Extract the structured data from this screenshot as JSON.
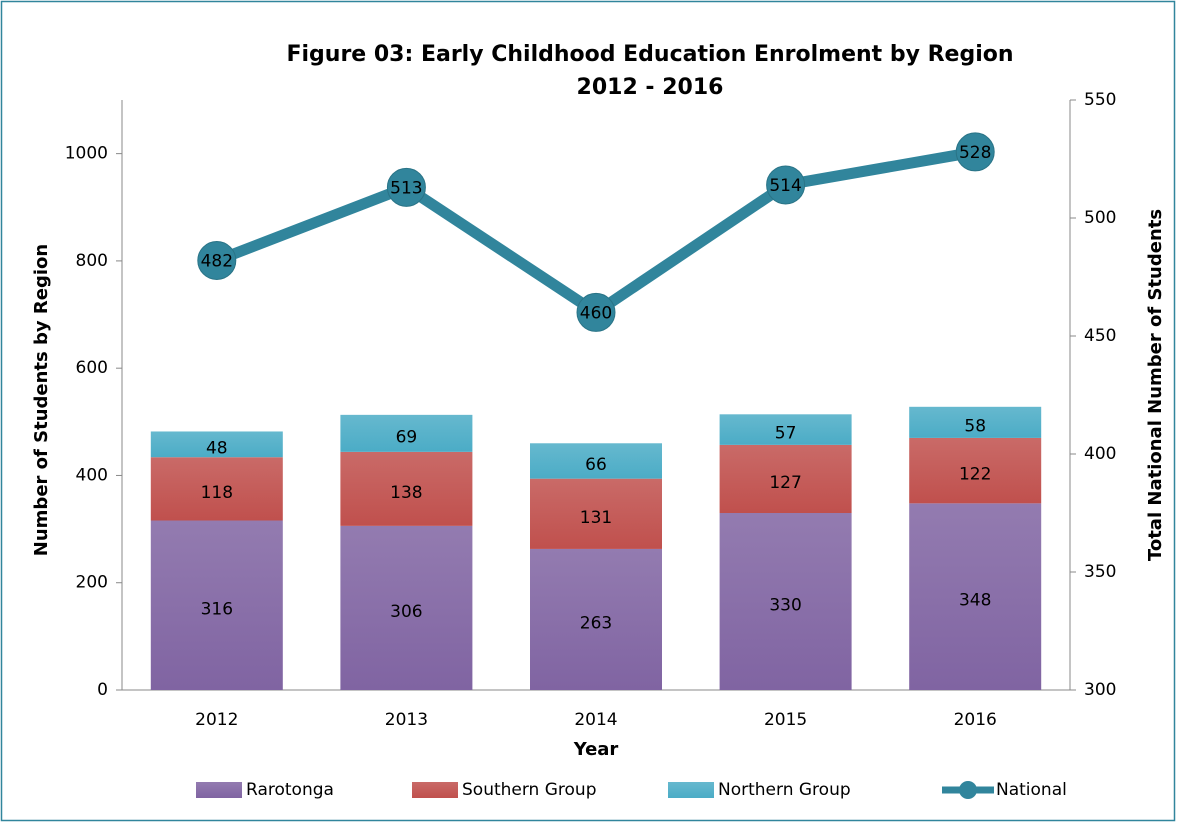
{
  "chart_data": {
    "type": "bar-line",
    "title": [
      "Figure 03:  Early Childhood Education Enrolment by Region",
      "2012 - 2016"
    ],
    "x_label": "Year",
    "y_label": "Number of Students by Region",
    "y2_label": "Total National Number of Students",
    "categories": [
      "2012",
      "2013",
      "2014",
      "2015",
      "2016"
    ],
    "series": [
      {
        "name": "Rarotonga",
        "color": "#8064a2",
        "type": "bar",
        "values": [
          316,
          306,
          263,
          330,
          348
        ]
      },
      {
        "name": "Southern Group",
        "color": "#c0504d",
        "type": "bar",
        "values": [
          118,
          138,
          131,
          127,
          122
        ]
      },
      {
        "name": "Northern Group",
        "color": "#4bacc6",
        "type": "bar",
        "values": [
          48,
          69,
          66,
          57,
          58
        ]
      },
      {
        "name": "National",
        "color": "#31859c",
        "type": "line",
        "axis": "y2",
        "values": [
          482,
          513,
          460,
          514,
          528
        ]
      }
    ],
    "ylim": [
      0,
      1100
    ],
    "yticks": [
      0,
      200,
      400,
      600,
      800,
      1000
    ],
    "y2lim": [
      300,
      550
    ],
    "y2ticks": [
      300,
      350,
      400,
      450,
      500,
      550
    ],
    "grid": false,
    "legend": "bottom"
  }
}
